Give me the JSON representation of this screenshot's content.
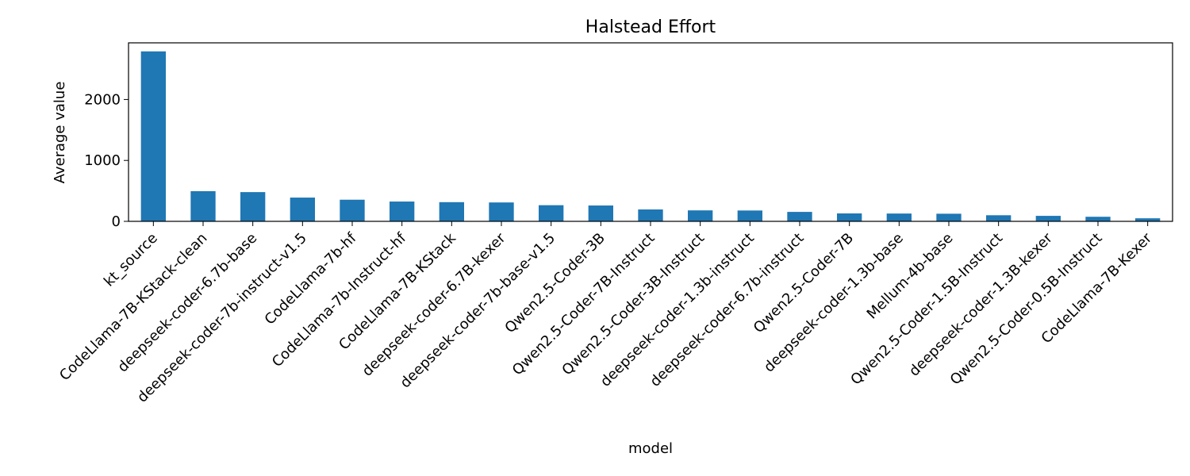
{
  "chart_data": {
    "type": "bar",
    "title": "Halstead Effort",
    "xlabel": "model",
    "ylabel": "Average value",
    "ylim": [
      0,
      2930
    ],
    "yticks": [
      0,
      1000,
      2000
    ],
    "grid": false,
    "legend": "none",
    "color": "#1f77b4",
    "categories": [
      "kt_source",
      "CodeLlama-7B-KStack-clean",
      "deepseek-coder-6.7b-base",
      "deepseek-coder-7b-instruct-v1.5",
      "CodeLlama-7b-hf",
      "CodeLlama-7b-Instruct-hf",
      "CodeLlama-7B-KStack",
      "deepseek-coder-6.7B-kexer",
      "deepseek-coder-7b-base-v1.5",
      "Qwen2.5-Coder-3B",
      "Qwen2.5-Coder-7B-Instruct",
      "Qwen2.5-Coder-3B-Instruct",
      "deepseek-coder-1.3b-instruct",
      "deepseek-coder-6.7b-instruct",
      "Qwen2.5-Coder-7B",
      "deepseek-coder-1.3b-base",
      "Mellum-4b-base",
      "Qwen2.5-Coder-1.5B-Instruct",
      "deepseek-coder-1.3B-kexer",
      "Qwen2.5-Coder-0.5B-Instruct",
      "CodeLlama-7B-Kexer"
    ],
    "values": [
      2790,
      495,
      480,
      390,
      355,
      325,
      315,
      310,
      265,
      260,
      195,
      180,
      178,
      155,
      130,
      128,
      125,
      100,
      90,
      75,
      50
    ]
  }
}
